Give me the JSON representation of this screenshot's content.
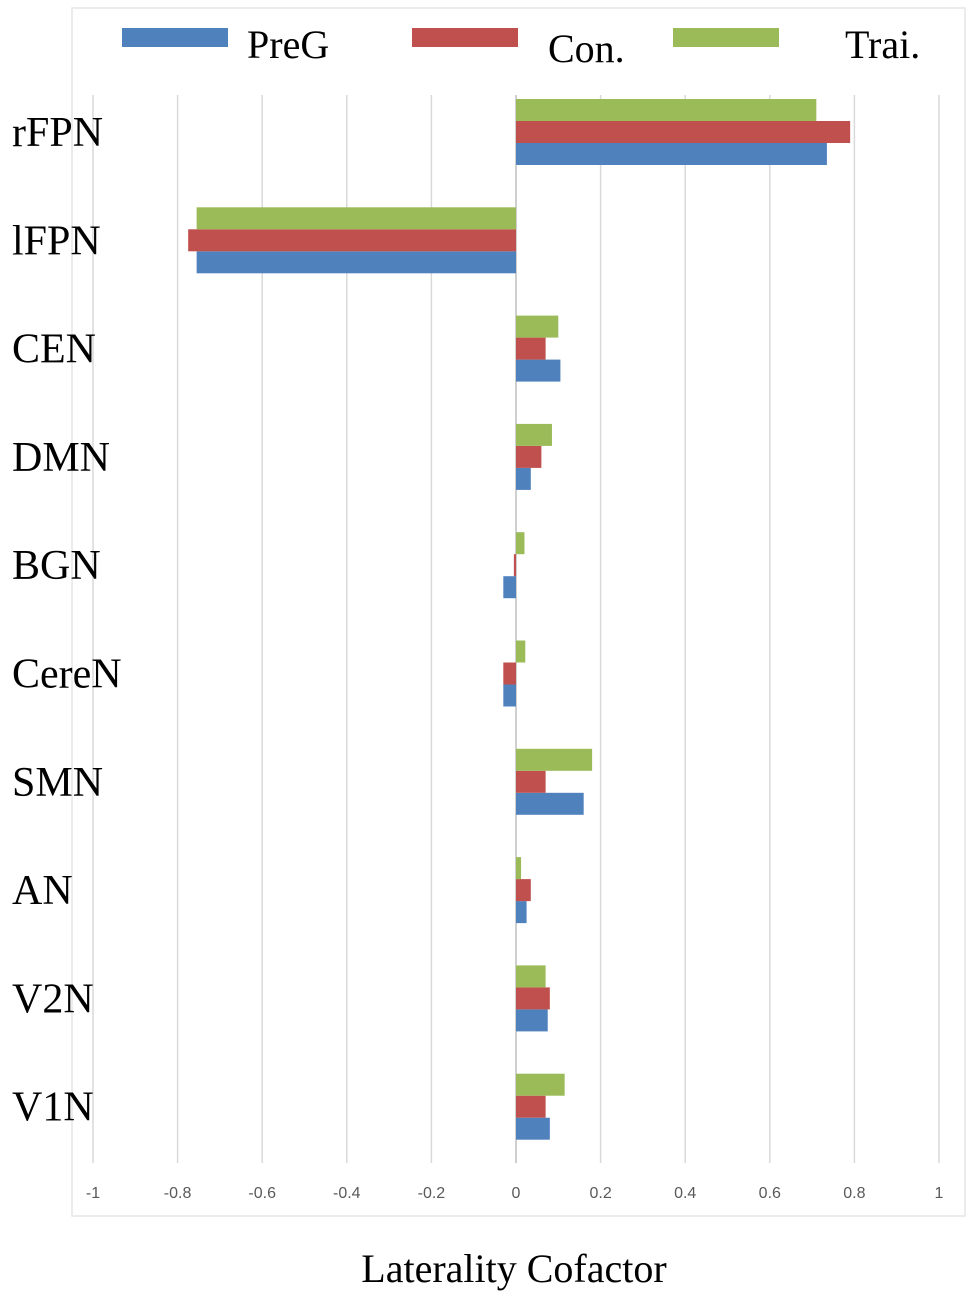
{
  "chart_data": {
    "type": "bar",
    "orientation": "horizontal",
    "categories": [
      "rFPN",
      "lFPN",
      "CEN",
      "DMN",
      "BGN",
      "CereN",
      "SMN",
      "AN",
      "V2N",
      "V1N"
    ],
    "series": [
      {
        "name": "PreG",
        "color": "#4f81bd",
        "values": [
          0.735,
          -0.755,
          0.105,
          0.035,
          -0.03,
          -0.03,
          0.16,
          0.025,
          0.075,
          0.08
        ]
      },
      {
        "name": "Con.",
        "color": "#c0504d",
        "values": [
          0.79,
          -0.775,
          0.07,
          0.06,
          -0.005,
          -0.03,
          0.07,
          0.035,
          0.08,
          0.07
        ]
      },
      {
        "name": "Trai.",
        "color": "#9bbb59",
        "values": [
          0.71,
          -0.755,
          0.1,
          0.085,
          0.02,
          0.022,
          0.18,
          0.012,
          0.07,
          0.115
        ]
      }
    ],
    "xlabel": "Laterality Cofactor",
    "xlim": [
      -1,
      1
    ],
    "xticks": [
      "-1",
      "-0.8",
      "-0.6",
      "-0.4",
      "-0.2",
      "0",
      "0.2",
      "0.4",
      "0.6",
      "0.8",
      "1"
    ],
    "grid": true,
    "legend_position": "top"
  }
}
